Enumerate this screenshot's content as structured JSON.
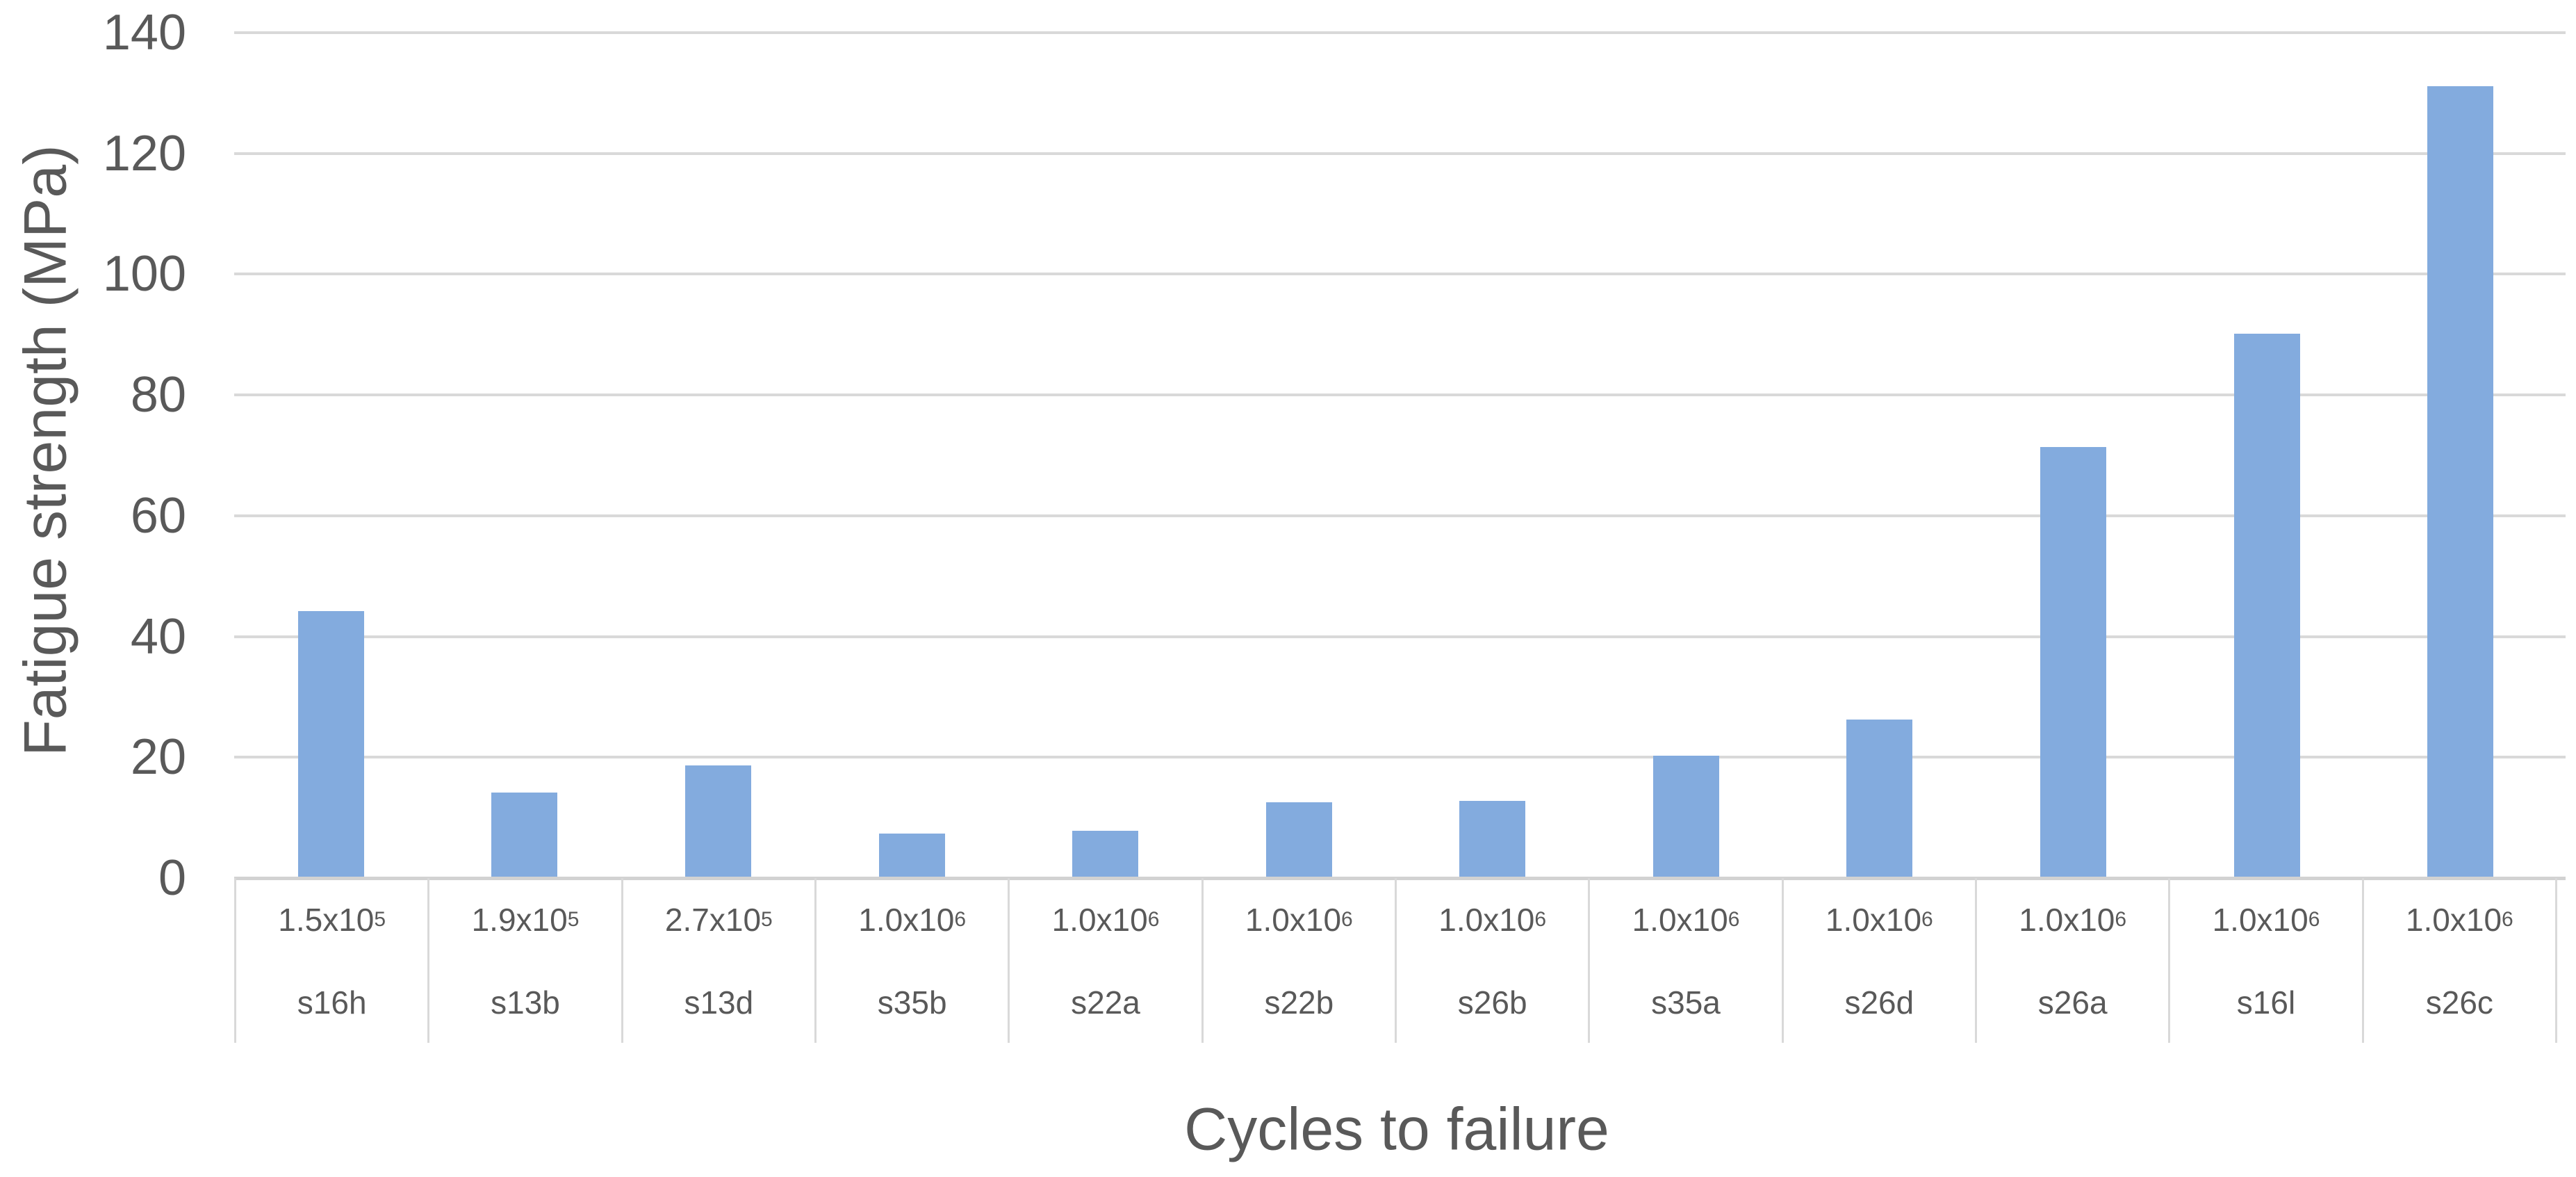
{
  "chart_data": {
    "type": "bar",
    "title": "",
    "xlabel": "Cycles to failure",
    "ylabel": "Fatigue strength (MPa)",
    "ylim": [
      0,
      140
    ],
    "yticks": [
      0,
      20,
      40,
      60,
      80,
      100,
      120,
      140
    ],
    "grid": "horizontal",
    "legend": "none",
    "categories": [
      {
        "cycles": "1.5x10^5",
        "specimen": "s16h"
      },
      {
        "cycles": "1.9x10^5",
        "specimen": "s13b"
      },
      {
        "cycles": "2.7x10^5",
        "specimen": "s13d"
      },
      {
        "cycles": "1.0x10^6",
        "specimen": "s35b"
      },
      {
        "cycles": "1.0x10^6",
        "specimen": "s22a"
      },
      {
        "cycles": "1.0x10^6",
        "specimen": "s22b"
      },
      {
        "cycles": "1.0x10^6",
        "specimen": "s26b"
      },
      {
        "cycles": "1.0x10^6",
        "specimen": "s35a"
      },
      {
        "cycles": "1.0x10^6",
        "specimen": "s26d"
      },
      {
        "cycles": "1.0x10^6",
        "specimen": "s26a"
      },
      {
        "cycles": "1.0x10^6",
        "specimen": "s16l"
      },
      {
        "cycles": "1.0x10^6",
        "specimen": "s26c"
      }
    ],
    "values": [
      44.2,
      14.2,
      18.6,
      7.4,
      7.8,
      12.5,
      12.8,
      20.3,
      26.2,
      71.4,
      90.2,
      131.1
    ],
    "colors": {
      "bar_fill": "#83ABDE",
      "gridline": "#D9D9D9",
      "axis_line": "#D2D2D2",
      "text": "#595959"
    }
  }
}
